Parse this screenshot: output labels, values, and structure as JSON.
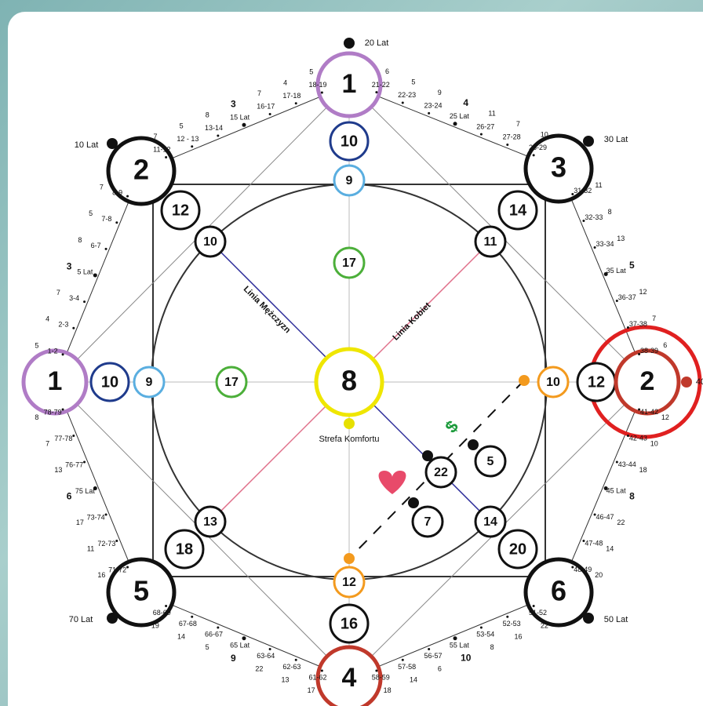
{
  "nodes": [
    {
      "label": "1"
    },
    {
      "label": "10"
    },
    {
      "label": "9"
    },
    {
      "label": "17"
    },
    {
      "label": "8"
    },
    {
      "label": "2"
    },
    {
      "label": "12"
    },
    {
      "label": "10"
    },
    {
      "label": "3"
    },
    {
      "label": "14"
    },
    {
      "label": "11"
    },
    {
      "label": "1"
    },
    {
      "label": "10"
    },
    {
      "label": "9"
    },
    {
      "label": "17"
    },
    {
      "label": "10"
    },
    {
      "label": "12"
    },
    {
      "label": "2"
    },
    {
      "label": "13"
    },
    {
      "label": "18"
    },
    {
      "label": "5"
    },
    {
      "label": "14"
    },
    {
      "label": "20"
    },
    {
      "label": "6"
    },
    {
      "label": "12"
    },
    {
      "label": "16"
    },
    {
      "label": "4"
    },
    {
      "label": "22"
    },
    {
      "label": "5"
    },
    {
      "label": "7"
    }
  ],
  "vertex_labels": [
    {
      "label": "10 Lat"
    },
    {
      "label": "20 Lat"
    },
    {
      "label": "30 Lat"
    },
    {
      "label": "40"
    },
    {
      "label": "50 Lat"
    },
    {
      "label": "70 Lat"
    }
  ],
  "edges": [
    {
      "ranges": [
        "1-2",
        "2-3",
        "3-4",
        "5 Lat",
        "6-7",
        "7-8",
        "8-9"
      ],
      "numbers": [
        "5",
        "4",
        "7",
        "3",
        "8",
        "5",
        "7"
      ]
    },
    {
      "ranges": [
        "11-12",
        "12 - 13",
        "13-14",
        "15 Lat",
        "16-17",
        "17-18",
        "18-19"
      ],
      "numbers": [
        "7",
        "5",
        "8",
        "3",
        "7",
        "4",
        "5"
      ]
    },
    {
      "ranges": [
        "21-22",
        "22-23",
        "23-24",
        "25 Lat",
        "26-27",
        "27-28",
        "28-29"
      ],
      "numbers": [
        "6",
        "5",
        "9",
        "4",
        "11",
        "7",
        "10"
      ]
    },
    {
      "ranges": [
        "31-32",
        "32-33",
        "33-34",
        "35 Lat",
        "36-37",
        "37-38",
        "38-39"
      ],
      "numbers": [
        "11",
        "8",
        "13",
        "5",
        "12",
        "7",
        "6"
      ]
    },
    {
      "ranges": [
        "41-42",
        "42-43",
        "43-44",
        "45 Lat",
        "46-47",
        "47-48",
        "48-49"
      ],
      "numbers": [
        "12",
        "10",
        "18",
        "8",
        "22",
        "14",
        "20"
      ]
    },
    {
      "ranges": [
        "51-52",
        "52-53",
        "53-54",
        "55 Lat",
        "56-57",
        "57-58",
        "58-59"
      ],
      "numbers": [
        "22",
        "16",
        "8",
        "10",
        "6",
        "14",
        "18"
      ]
    },
    {
      "ranges": [
        "61-62",
        "62-63",
        "63-64",
        "65 Lat",
        "66-67",
        "67-68",
        "68-69"
      ],
      "numbers": [
        "17",
        "13",
        "22",
        "9",
        "5",
        "14",
        "19"
      ]
    },
    {
      "ranges": [
        "71-72",
        "72-73",
        "73-74",
        "75 Lat",
        "76-77",
        "77-78",
        "78-79"
      ],
      "numbers": [
        "16",
        "11",
        "17",
        "6",
        "13",
        "7",
        "8"
      ]
    }
  ],
  "line_men": "Linia Mężczyzn",
  "line_women": "Linia Kobiet",
  "comfort_zone": "Strefa Komfortu",
  "money_symbol": "$"
}
